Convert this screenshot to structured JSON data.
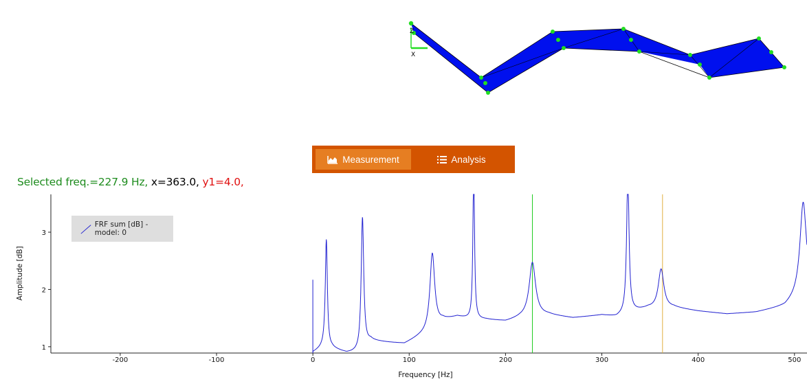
{
  "tabs": [
    {
      "label": "Measurement",
      "icon": "area-chart-icon",
      "active": true
    },
    {
      "label": "Analysis",
      "icon": "list-icon",
      "active": false
    }
  ],
  "readout": {
    "freq": "Selected freq.=227.9 Hz,",
    "x": " x=363.0,",
    "y": " y1=4.0,"
  },
  "model_view": {
    "axis_z": "Z",
    "axis_x": "X",
    "colors": {
      "surface": "#0010ee",
      "nodes": "#22dd22",
      "edges": "#000000"
    }
  },
  "chart_data": {
    "type": "line",
    "title": "",
    "xlabel": "Frequency [Hz]",
    "ylabel": "Amplitude [dB]",
    "xlim": [
      -272,
      513
    ],
    "ylim": [
      0.89,
      3.66
    ],
    "xticks": [
      -200,
      -100,
      0,
      100,
      200,
      300,
      400,
      500
    ],
    "yticks": [
      1,
      2,
      3
    ],
    "legend": {
      "position": "top-left",
      "entries": [
        "FRF sum [dB] - model: 0"
      ]
    },
    "grid": false,
    "markers": [
      {
        "x": 227.9,
        "color": "#22cc22"
      },
      {
        "x": 363.0,
        "color": "#e0b040"
      }
    ],
    "series": [
      {
        "name": "FRF sum [dB] - model: 0",
        "color": "#2020d0",
        "peaks": [
          {
            "f0": 14,
            "h": 1.92,
            "w": 1.3
          },
          {
            "f0": 51.5,
            "h": 2.3,
            "w": 1.6
          },
          {
            "f0": 124,
            "h": 1.35,
            "w": 3.0
          },
          {
            "f0": 167,
            "h": 2.7,
            "w": 1.0
          },
          {
            "f0": 227.9,
            "h": 0.95,
            "w": 4.0
          },
          {
            "f0": 327,
            "h": 2.45,
            "w": 1.5
          },
          {
            "f0": 361.5,
            "h": 0.7,
            "w": 3.5
          },
          {
            "f0": 509,
            "h": 1.6,
            "w": 4.0
          }
        ],
        "baseline": [
          [
            0,
            0.9
          ],
          [
            12,
            1.0
          ],
          [
            13.5,
            0.95
          ],
          [
            20,
            0.97
          ],
          [
            35,
            0.89
          ],
          [
            48,
            0.9
          ],
          [
            60,
            1.1
          ],
          [
            80,
            1.07
          ],
          [
            95,
            1.05
          ],
          [
            110,
            1.17
          ],
          [
            122,
            1.25
          ],
          [
            135,
            1.45
          ],
          [
            150,
            1.52
          ],
          [
            165,
            1.47
          ],
          [
            180,
            1.47
          ],
          [
            200,
            1.44
          ],
          [
            215,
            1.5
          ],
          [
            245,
            1.55
          ],
          [
            270,
            1.5
          ],
          [
            300,
            1.55
          ],
          [
            315,
            1.52
          ],
          [
            335,
            1.62
          ],
          [
            348,
            1.67
          ],
          [
            360,
            1.65
          ],
          [
            375,
            1.68
          ],
          [
            400,
            1.62
          ],
          [
            430,
            1.57
          ],
          [
            460,
            1.6
          ],
          [
            490,
            1.7
          ],
          [
            513,
            1.97
          ]
        ],
        "spike": {
          "x": 0,
          "y": 2.17
        }
      }
    ]
  }
}
